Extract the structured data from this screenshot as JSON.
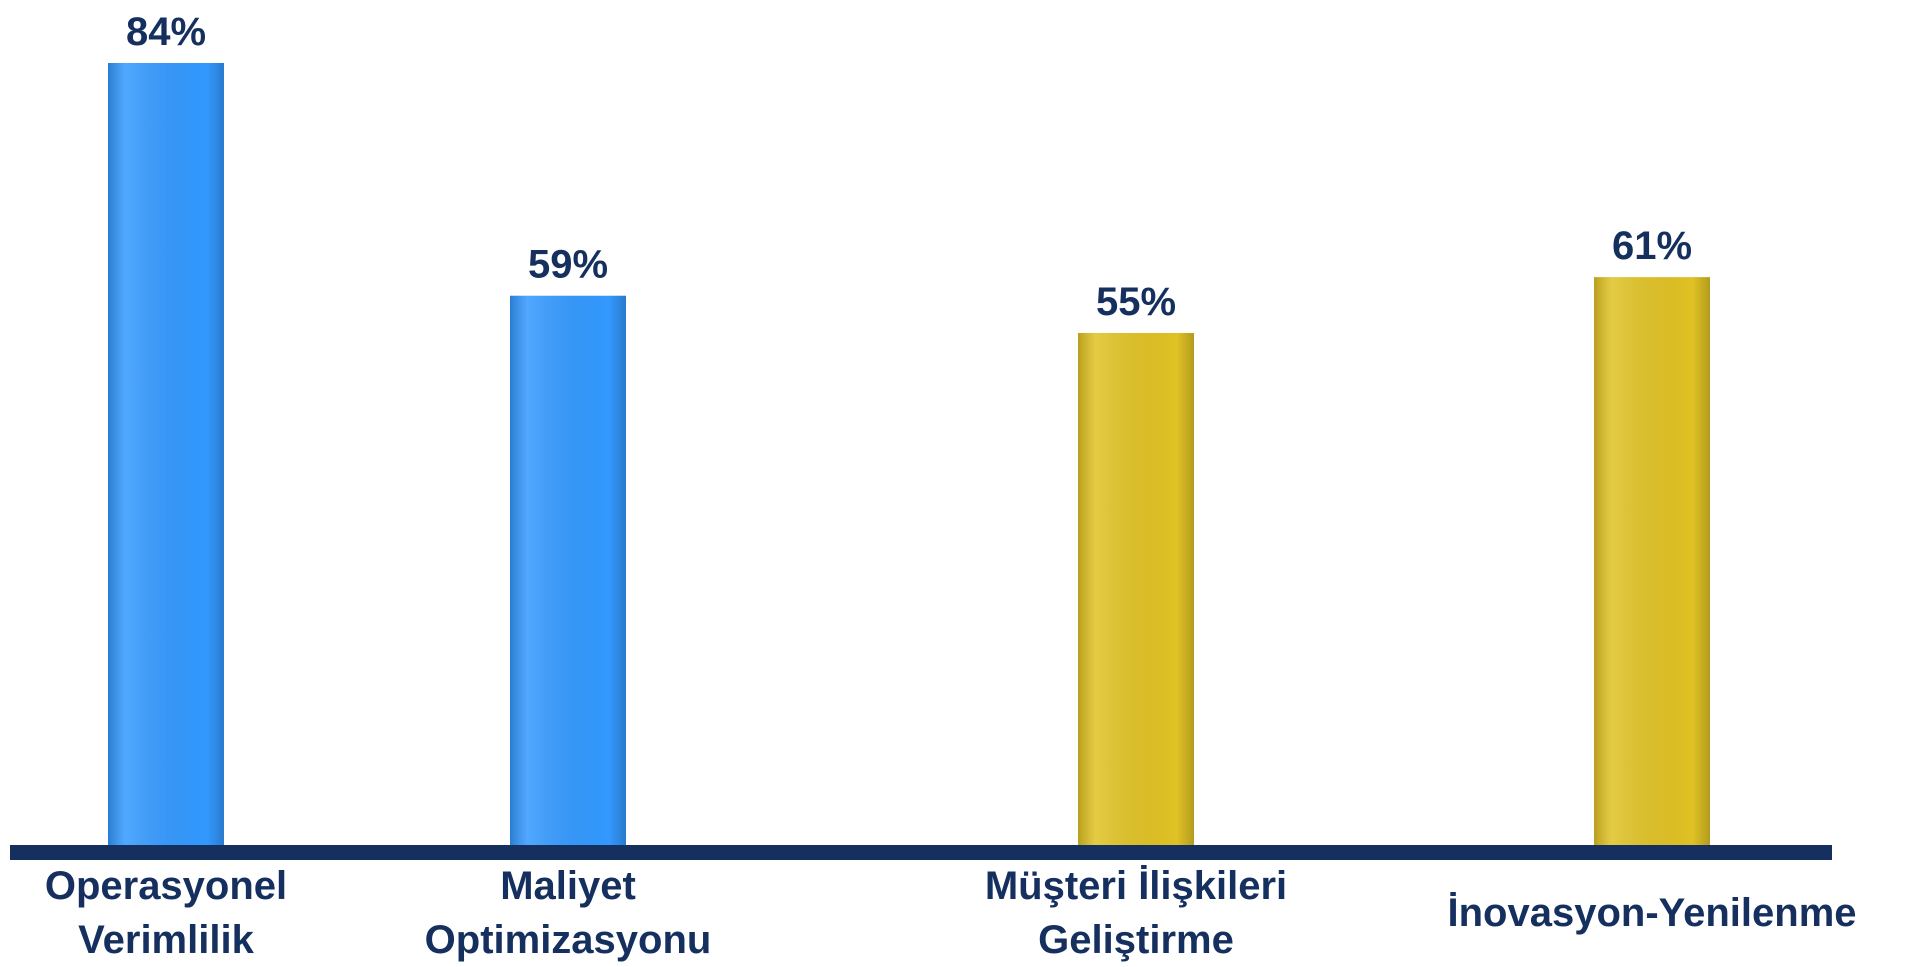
{
  "chart_data": {
    "type": "bar",
    "categories": [
      "Operasyonel\nVerimlilik",
      "Maliyet\nOptimizasyonu",
      "Müşteri İlişkileri\nGeliştirme",
      "İnovasyon-Yenilenme"
    ],
    "values": [
      84,
      59,
      55,
      61
    ],
    "value_labels": [
      "84%",
      "59%",
      "55%",
      "61%"
    ],
    "colors": [
      "#3399ff",
      "#3399ff",
      "#e0c224",
      "#e0c224"
    ]
  }
}
